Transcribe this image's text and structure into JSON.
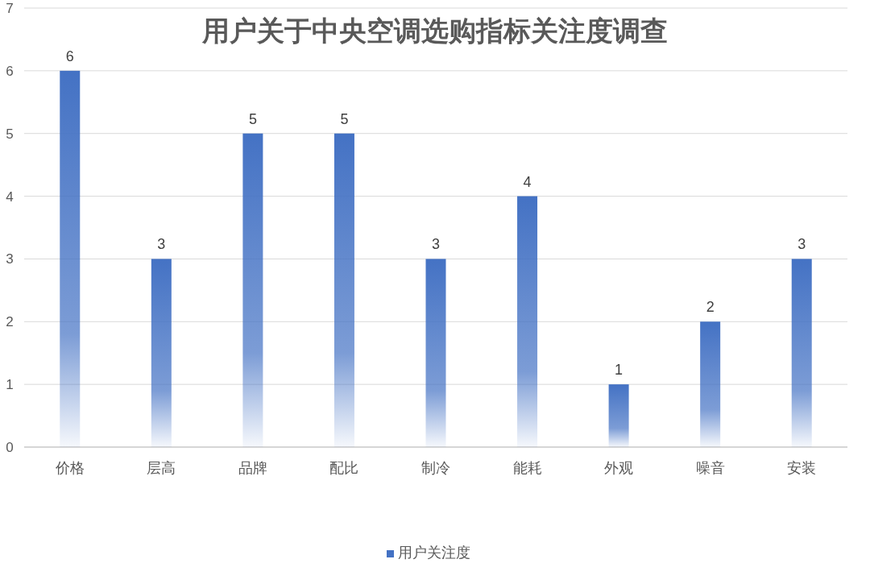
{
  "chart_data": {
    "type": "bar",
    "title": "用户关于中央空调选购指标关注度调查",
    "categories": [
      "价格",
      "层高",
      "品牌",
      "配比",
      "制冷",
      "能耗",
      "外观",
      "噪音",
      "安装"
    ],
    "series": [
      {
        "name": "用户关注度",
        "color": "#4472c4",
        "values": [
          6,
          3,
          5,
          5,
          3,
          4,
          1,
          2,
          3
        ]
      }
    ],
    "ylim": [
      0,
      7
    ],
    "yticks": [
      0,
      1,
      2,
      3,
      4,
      5,
      6,
      7
    ],
    "grid": "y",
    "legend": "bottom",
    "data_labels": true
  }
}
